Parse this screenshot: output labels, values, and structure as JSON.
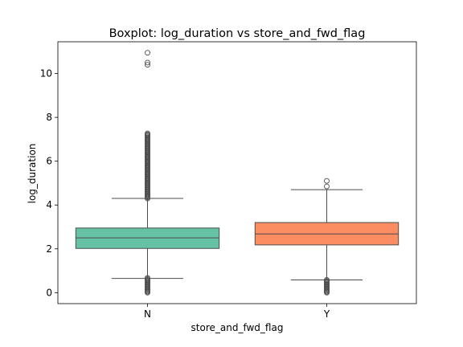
{
  "chart_data": {
    "type": "box",
    "title": "Boxplot: log_duration vs store_and_fwd_flag",
    "xlabel": "store_and_fwd_flag",
    "ylabel": "log_duration",
    "categories": [
      "N",
      "Y"
    ],
    "ylim": [
      -0.5,
      11.45
    ],
    "yticks": [
      0,
      2,
      4,
      6,
      8,
      10
    ],
    "grid": false,
    "boxes": [
      {
        "category": "N",
        "whisker_low": 0.65,
        "q1": 2.02,
        "median": 2.5,
        "q3": 2.95,
        "whisker_high": 4.3,
        "color": "#66c2a5",
        "outliers_low_range": [
          0.0,
          0.7
        ],
        "outliers_high_range": [
          4.3,
          7.3
        ],
        "outliers_extreme": [
          10.4,
          10.5,
          10.95
        ]
      },
      {
        "category": "Y",
        "whisker_low": 0.58,
        "q1": 2.18,
        "median": 2.68,
        "q3": 3.2,
        "whisker_high": 4.7,
        "color": "#fc8d62",
        "outliers_low_range": [
          0.0,
          0.6
        ],
        "outliers_high_range": [],
        "outliers_extreme": [
          4.85,
          5.1
        ]
      }
    ]
  }
}
